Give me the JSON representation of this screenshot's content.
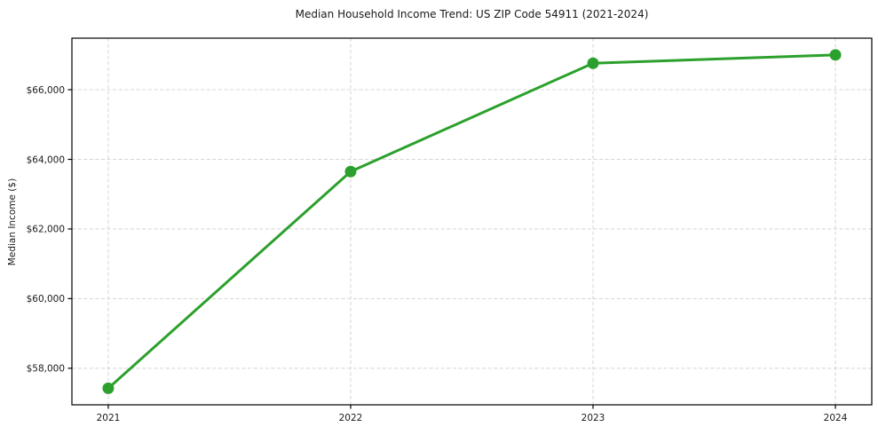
{
  "chart_data": {
    "type": "line",
    "title": "Median Household Income Trend: US ZIP Code 54911 (2021-2024)",
    "xlabel": "",
    "ylabel": "Median Income ($)",
    "x": [
      2021,
      2022,
      2023,
      2024
    ],
    "x_labels": [
      "2021",
      "2022",
      "2023",
      "2024"
    ],
    "values": [
      57425,
      63650,
      66760,
      67000
    ],
    "yticks": [
      {
        "value": 58000,
        "label": "$58,000"
      },
      {
        "value": 60000,
        "label": "$60,000"
      },
      {
        "value": 62000,
        "label": "$62,000"
      },
      {
        "value": 64000,
        "label": "$64,000"
      },
      {
        "value": 66000,
        "label": "$66,000"
      }
    ],
    "ylim": [
      56950,
      67480
    ],
    "xlim": [
      2020.85,
      2024.15
    ],
    "grid": true,
    "grid_style": "dashed",
    "legend": "none",
    "line_color": "#2ca02c",
    "marker": "circle",
    "marker_radius": 6.5,
    "line_width": 3,
    "grid_color": "#d4d4d4",
    "background_color": "#ffffff",
    "text_color": "#1a1a1a"
  }
}
